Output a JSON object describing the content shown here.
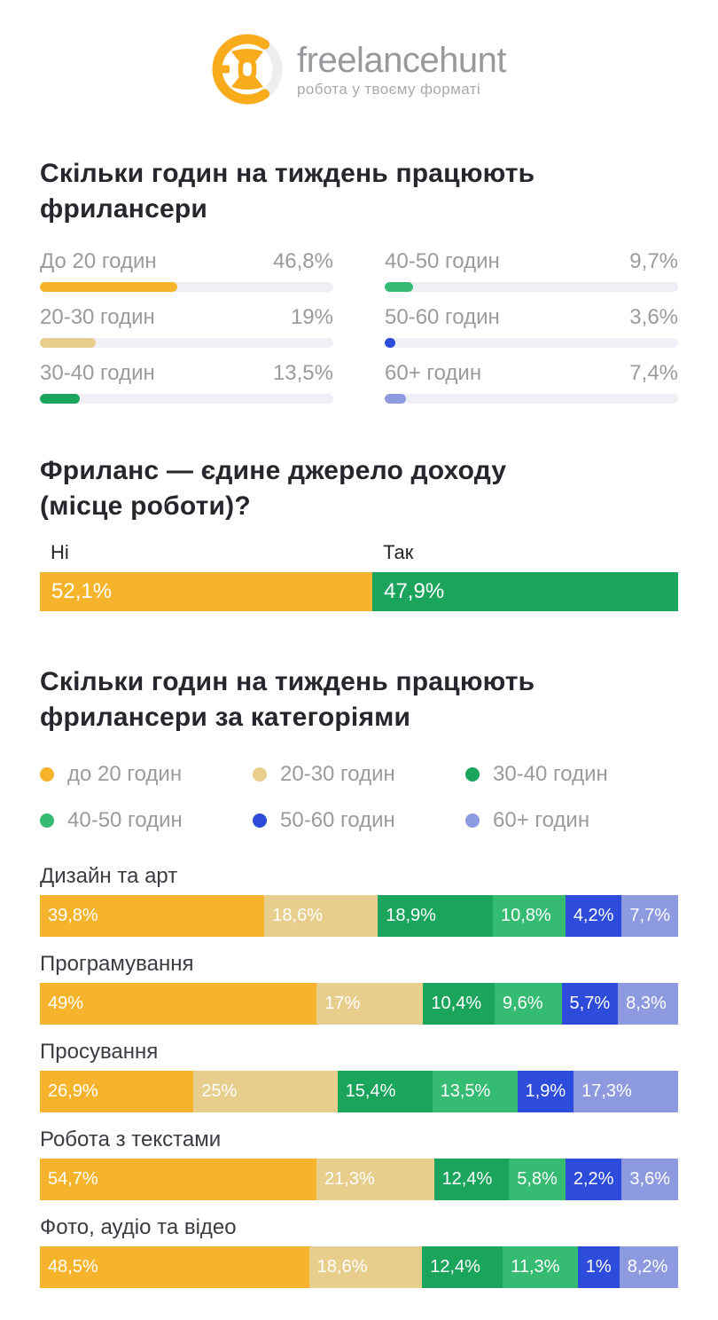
{
  "logo": {
    "brand": "freelancehunt",
    "tagline": "робота у твоєму форматі",
    "icon": "freelancehunt-mask-icon"
  },
  "colors": {
    "yellow": "#F6B42C",
    "tan": "#E8CE8D",
    "green": "#1AA45C",
    "emerald": "#35BB72",
    "blue": "#2E4CDB",
    "periwinkle": "#8E9ADF",
    "track": "#EEF0F5",
    "logo_orange": "#F8AC1C",
    "logo_gray": "#EDEEF0"
  },
  "chart_data": [
    {
      "id": "hours_per_week",
      "type": "bar",
      "orientation": "horizontal",
      "layout": "two-column",
      "title": "Скільки годин на тиждень працюють фрилансери",
      "title_lines": [
        "Скільки годин на тиждень працюють",
        "фрилансери"
      ],
      "unit": "%",
      "xlim": [
        0,
        100
      ],
      "items": [
        {
          "label": "До 20 годин",
          "value": 46.8,
          "value_label": "46,8%",
          "color": "yellow"
        },
        {
          "label": "20-30 годин",
          "value": 19,
          "value_label": "19%",
          "color": "tan"
        },
        {
          "label": "30-40 годин",
          "value": 13.5,
          "value_label": "13,5%",
          "color": "green"
        },
        {
          "label": "40-50 годин",
          "value": 9.7,
          "value_label": "9,7%",
          "color": "emerald"
        },
        {
          "label": "50-60 годин",
          "value": 3.6,
          "value_label": "3,6%",
          "color": "blue"
        },
        {
          "label": "60+ годин",
          "value": 7.4,
          "value_label": "7,4%",
          "color": "periwinkle"
        }
      ]
    },
    {
      "id": "freelance_only_income",
      "type": "bar",
      "variant": "single-stacked",
      "title": "Фриланс — єдине джерело доходу (місце роботи)?",
      "title_lines": [
        "Фриланс — єдине джерело доходу",
        "(місце роботи)?"
      ],
      "unit": "%",
      "segments": [
        {
          "label": "Ні",
          "value": 52.1,
          "value_label": "52,1%",
          "color": "yellow"
        },
        {
          "label": "Так",
          "value": 47.9,
          "value_label": "47,9%",
          "color": "green"
        }
      ]
    },
    {
      "id": "hours_by_category",
      "type": "bar",
      "variant": "stacked",
      "title": "Скільки годин на тиждень працюють фрилансери за категоріями",
      "title_lines": [
        "Скільки годин на тиждень працюють",
        "фрилансери за категоріями"
      ],
      "unit": "%",
      "legend_position": "top",
      "legend": [
        {
          "label": "до 20 годин",
          "color": "yellow"
        },
        {
          "label": "20-30 годин",
          "color": "tan"
        },
        {
          "label": "30-40 годин",
          "color": "green"
        },
        {
          "label": "40-50 годин",
          "color": "emerald"
        },
        {
          "label": "50-60 годин",
          "color": "blue"
        },
        {
          "label": "60+ годин",
          "color": "periwinkle"
        }
      ],
      "categories": [
        {
          "label": "Дизайн та арт",
          "values": [
            39.8,
            18.6,
            18.9,
            10.8,
            4.2,
            7.7
          ],
          "value_labels": [
            "39,8%",
            "18,6%",
            "18,9%",
            "10,8%",
            "4,2%",
            "7,7%"
          ]
        },
        {
          "label": "Програмування",
          "values": [
            49,
            17,
            10.4,
            9.6,
            5.7,
            8.3
          ],
          "value_labels": [
            "49%",
            "17%",
            "10,4%",
            "9,6%",
            "5,7%",
            "8,3%"
          ]
        },
        {
          "label": "Просування",
          "values": [
            26.9,
            25,
            15.4,
            13.5,
            1.9,
            17.3
          ],
          "value_labels": [
            "26,9%",
            "25%",
            "15,4%",
            "13,5%",
            "1,9%",
            "17,3%"
          ]
        },
        {
          "label": "Робота з текстами",
          "values": [
            54.7,
            21.3,
            12.4,
            5.8,
            2.2,
            3.6
          ],
          "value_labels": [
            "54,7%",
            "21,3%",
            "12,4%",
            "5,8%",
            "2,2%",
            "3,6%"
          ]
        },
        {
          "label": "Фото, аудіо та відео",
          "values": [
            48.5,
            18.6,
            12.4,
            11.3,
            1,
            8.2
          ],
          "value_labels": [
            "48,5%",
            "18,6%",
            "12,4%",
            "11,3%",
            "1%",
            "8,2%"
          ]
        }
      ]
    }
  ]
}
